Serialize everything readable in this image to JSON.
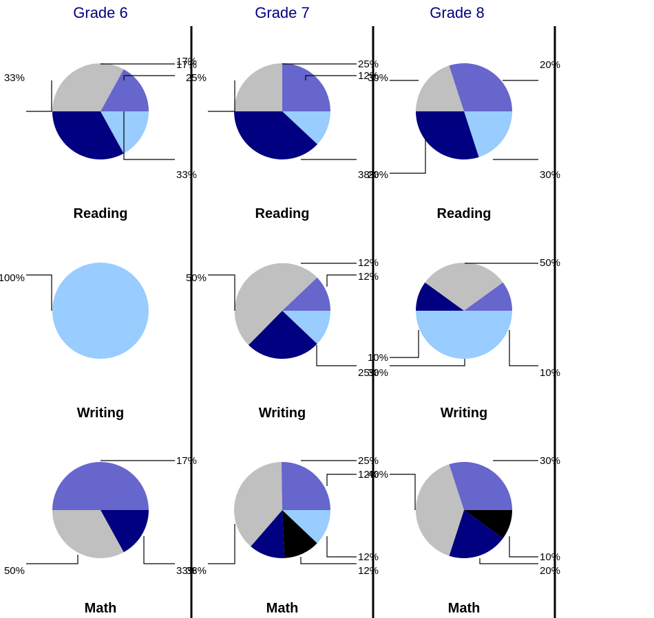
{
  "colors": {
    "light_blue": "#99ccff",
    "medium_purple": "#6666cc",
    "gray": "#c0c0c0",
    "navy": "#000080",
    "black": "#000000",
    "grade_title": "#000080",
    "divider": "#000000"
  },
  "grades": [
    "Grade 6",
    "Grade 7",
    "Grade 8"
  ],
  "subjects": [
    "Reading",
    "Writing",
    "Math"
  ],
  "chart_data": [
    {
      "type": "pie",
      "grade": "Grade 6",
      "title": "Reading",
      "slices": [
        {
          "value": 17,
          "label": "17%",
          "color": "light_blue"
        },
        {
          "value": 33,
          "label": "33%",
          "color": "navy"
        },
        {
          "value": 33,
          "label": "33%",
          "color": "gray"
        },
        {
          "value": 17,
          "label": "17%",
          "color": "medium_purple"
        }
      ]
    },
    {
      "type": "pie",
      "grade": "Grade 7",
      "title": "Reading",
      "slices": [
        {
          "value": 12,
          "label": "12%",
          "color": "light_blue"
        },
        {
          "value": 38,
          "label": "38%",
          "color": "navy"
        },
        {
          "value": 25,
          "label": "25%",
          "color": "gray"
        },
        {
          "value": 25,
          "label": "25%",
          "color": "medium_purple"
        }
      ]
    },
    {
      "type": "pie",
      "grade": "Grade 8",
      "title": "Reading",
      "slices": [
        {
          "value": 20,
          "label": "20%",
          "color": "light_blue"
        },
        {
          "value": 30,
          "label": "30%",
          "color": "navy"
        },
        {
          "value": 20,
          "label": "20%",
          "color": "gray"
        },
        {
          "value": 30,
          "label": "30%",
          "color": "medium_purple"
        }
      ]
    },
    {
      "type": "pie",
      "grade": "Grade 6",
      "title": "Writing",
      "slices": [
        {
          "value": 100,
          "label": "100%",
          "color": "light_blue"
        }
      ]
    },
    {
      "type": "pie",
      "grade": "Grade 7",
      "title": "Writing",
      "slices": [
        {
          "value": 12,
          "label": "12%",
          "color": "light_blue"
        },
        {
          "value": 25,
          "label": "25%",
          "color": "navy"
        },
        {
          "value": 50,
          "label": "50%",
          "color": "gray"
        },
        {
          "value": 12,
          "label": "12%",
          "color": "medium_purple"
        }
      ]
    },
    {
      "type": "pie",
      "grade": "Grade 8",
      "title": "Writing",
      "slices": [
        {
          "value": 50,
          "label": "50%",
          "color": "light_blue"
        },
        {
          "value": 10,
          "label": "10%",
          "color": "navy"
        },
        {
          "value": 30,
          "label": "30%",
          "color": "gray"
        },
        {
          "value": 10,
          "label": "10%",
          "color": "medium_purple"
        }
      ]
    },
    {
      "type": "pie",
      "grade": "Grade 6",
      "title": "Math",
      "slices": [
        {
          "value": 17,
          "label": "17%",
          "color": "navy"
        },
        {
          "value": 33,
          "label": "33%",
          "color": "gray"
        },
        {
          "value": 50,
          "label": "50%",
          "color": "medium_purple"
        }
      ]
    },
    {
      "type": "pie",
      "grade": "Grade 7",
      "title": "Math",
      "slices": [
        {
          "value": 12,
          "label": "12%",
          "color": "light_blue"
        },
        {
          "value": 12,
          "label": "12%",
          "color": "black"
        },
        {
          "value": 12,
          "label": "12%",
          "color": "navy"
        },
        {
          "value": 38,
          "label": "38%",
          "color": "gray"
        },
        {
          "value": 25,
          "label": "25%",
          "color": "medium_purple"
        }
      ]
    },
    {
      "type": "pie",
      "grade": "Grade 8",
      "title": "Math",
      "slices": [
        {
          "value": 10,
          "label": "10%",
          "color": "black"
        },
        {
          "value": 20,
          "label": "20%",
          "color": "navy"
        },
        {
          "value": 40,
          "label": "40%",
          "color": "gray"
        },
        {
          "value": 30,
          "label": "30%",
          "color": "medium_purple"
        }
      ]
    }
  ]
}
